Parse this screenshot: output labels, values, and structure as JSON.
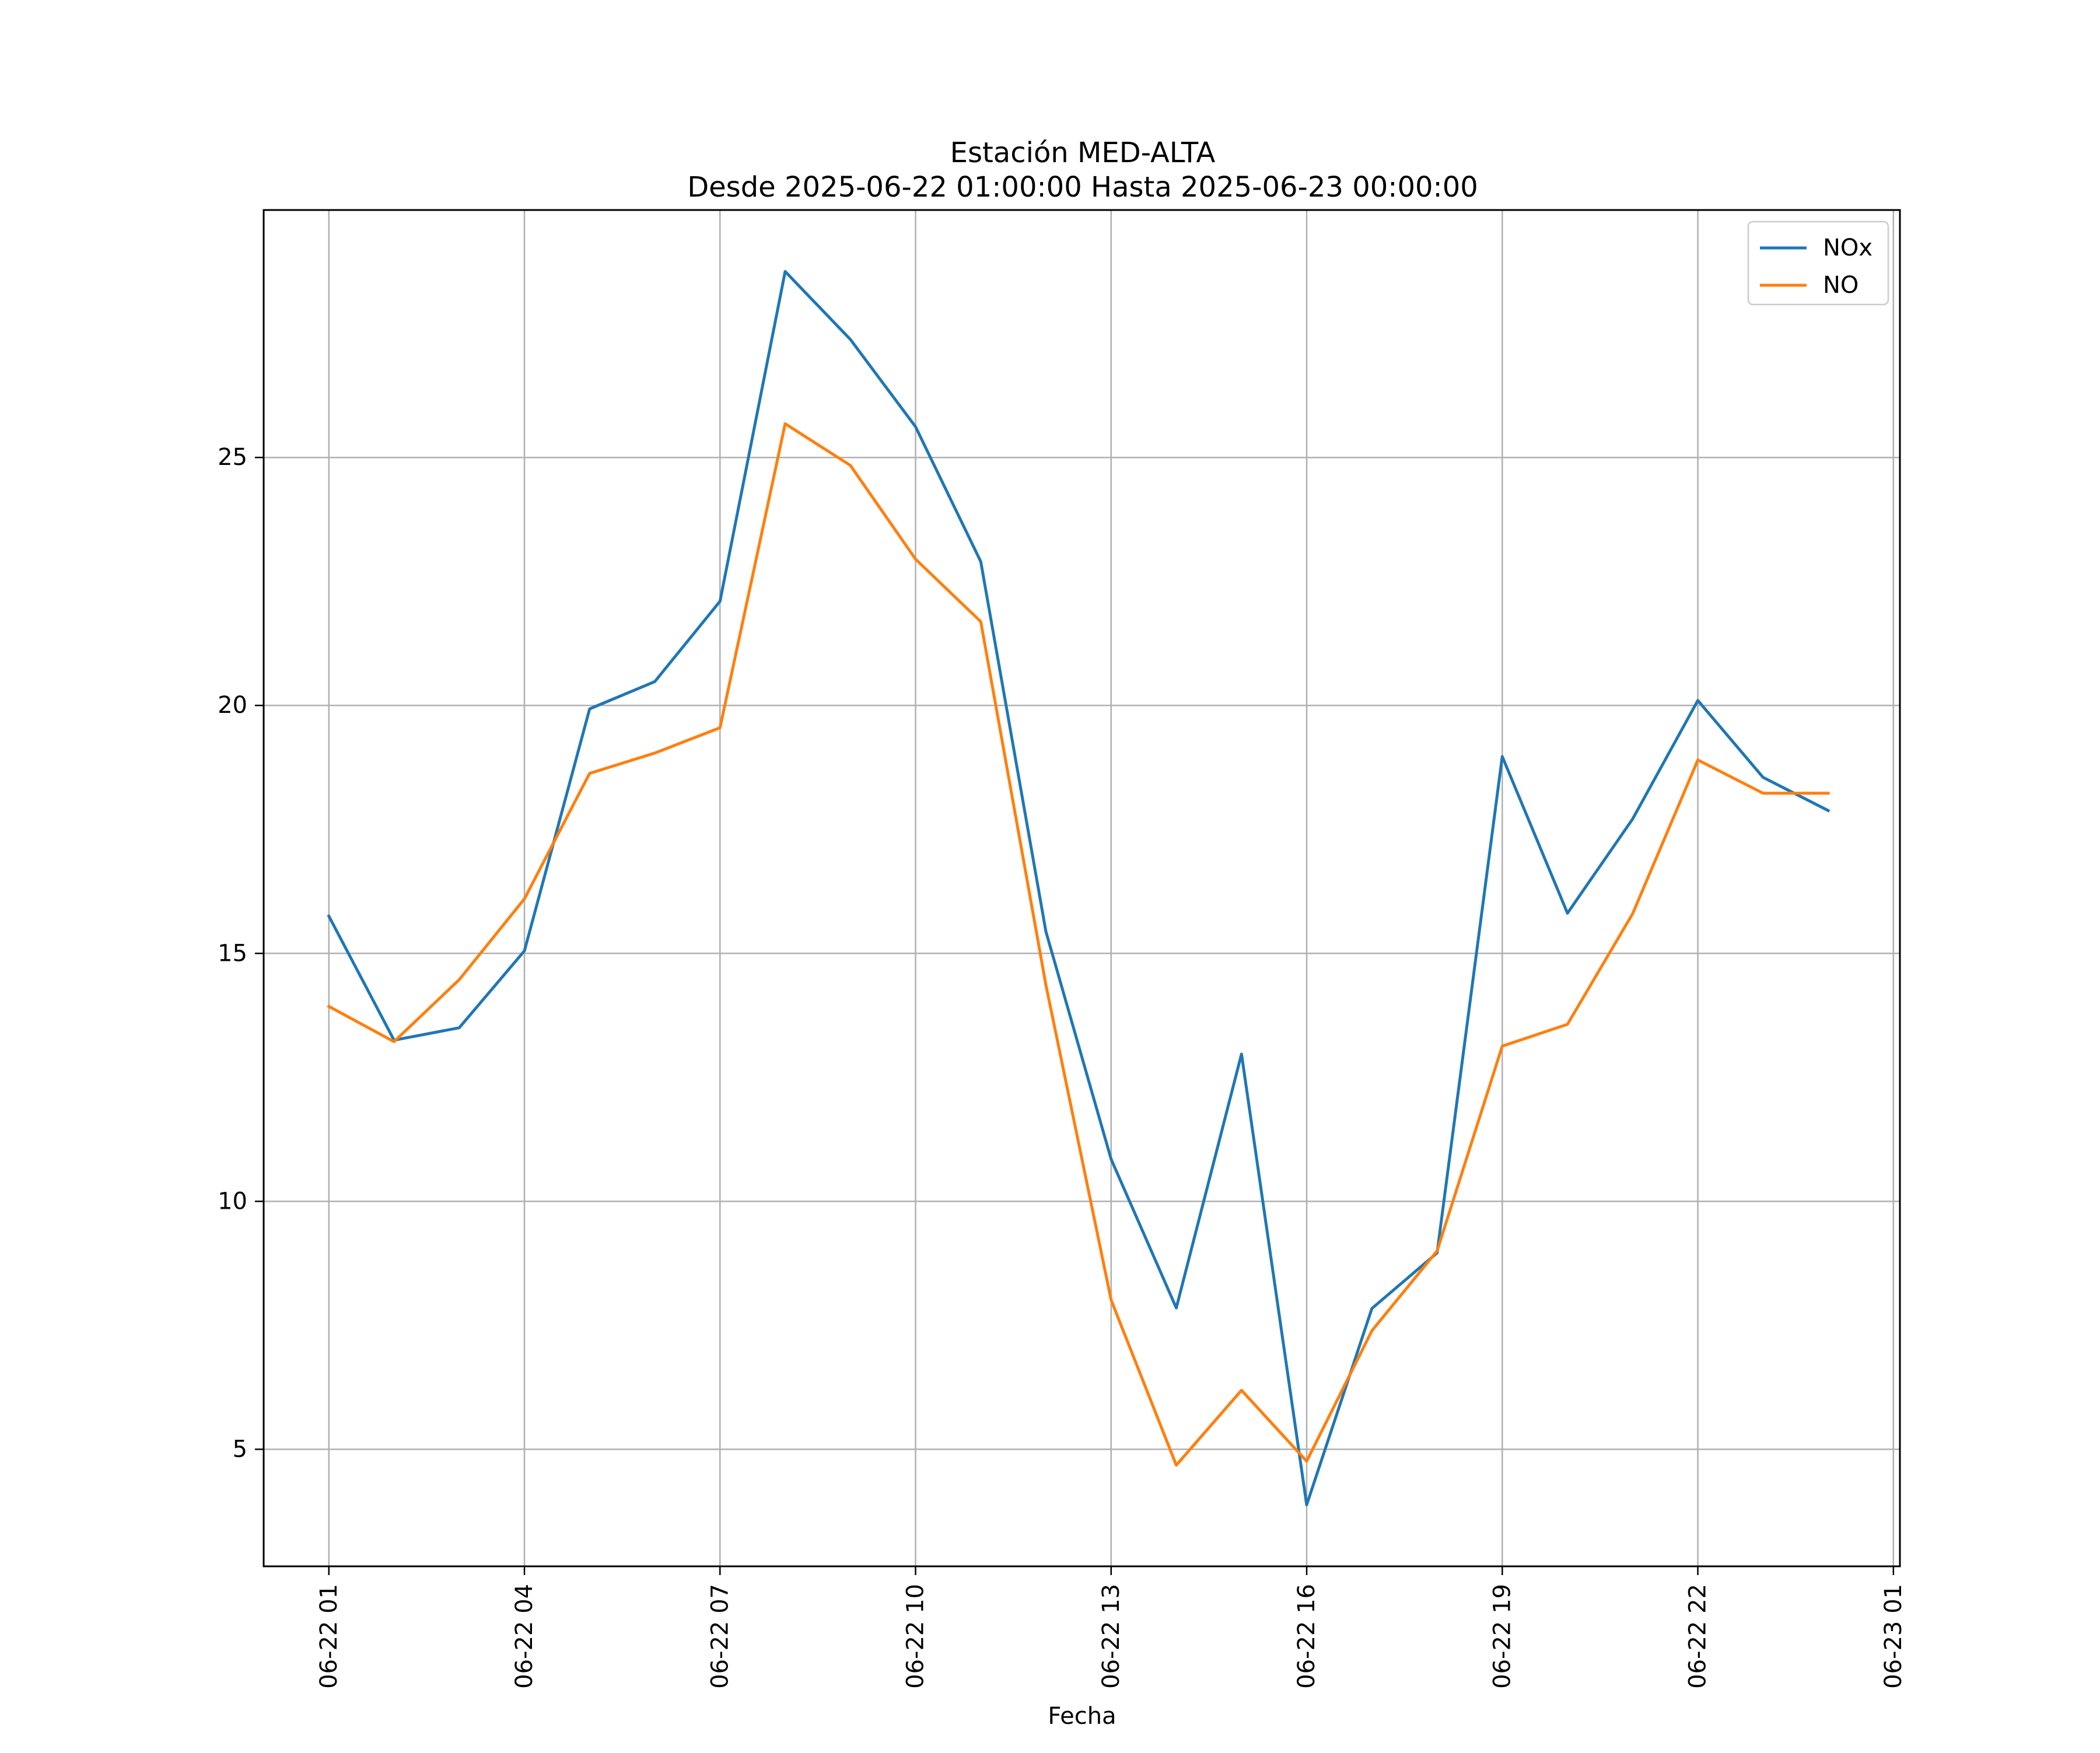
{
  "chart_data": {
    "type": "line",
    "title": "Estación MED-ALTA",
    "subtitle": "Desde 2025-06-22 01:00:00 Hasta 2025-06-23 00:00:00",
    "xlabel": "Fecha",
    "ylabel": "",
    "x": [
      "2025-06-22 01:00",
      "2025-06-22 02:00",
      "2025-06-22 03:00",
      "2025-06-22 04:00",
      "2025-06-22 05:00",
      "2025-06-22 06:00",
      "2025-06-22 07:00",
      "2025-06-22 08:00",
      "2025-06-22 09:00",
      "2025-06-22 10:00",
      "2025-06-22 11:00",
      "2025-06-22 12:00",
      "2025-06-22 13:00",
      "2025-06-22 14:00",
      "2025-06-22 15:00",
      "2025-06-22 16:00",
      "2025-06-22 17:00",
      "2025-06-22 18:00",
      "2025-06-22 19:00",
      "2025-06-22 20:00",
      "2025-06-22 21:00",
      "2025-06-22 22:00",
      "2025-06-22 23:00",
      "2025-06-23 00:00"
    ],
    "series": [
      {
        "name": "NOx",
        "color": "#1f77b4",
        "values": [
          15.75,
          13.25,
          13.5,
          15.05,
          19.93,
          20.48,
          22.1,
          28.75,
          27.38,
          25.62,
          22.9,
          15.44,
          10.85,
          7.85,
          12.97,
          3.88,
          7.84,
          8.96,
          18.97,
          15.81,
          17.71,
          20.1,
          18.55,
          17.88
        ]
      },
      {
        "name": "NO",
        "color": "#ff7f0e",
        "values": [
          13.93,
          13.22,
          14.47,
          16.1,
          18.63,
          19.04,
          19.55,
          25.68,
          24.84,
          22.95,
          21.69,
          14.36,
          8.01,
          4.68,
          6.19,
          4.76,
          7.39,
          9.0,
          13.13,
          13.57,
          15.8,
          18.9,
          18.23,
          18.23
        ]
      }
    ],
    "xticks": [
      "06-22 01",
      "06-22 04",
      "06-22 07",
      "06-22 10",
      "06-22 13",
      "06-22 16",
      "06-22 19",
      "06-22 22",
      "06-23 01"
    ],
    "yticks": [
      5,
      10,
      15,
      20,
      25
    ],
    "xlim": [
      "2025-06-22 00:00",
      "2025-06-23 01:06"
    ],
    "ylim": [
      2.64,
      29.99
    ],
    "grid": true,
    "legend": "top-right"
  }
}
